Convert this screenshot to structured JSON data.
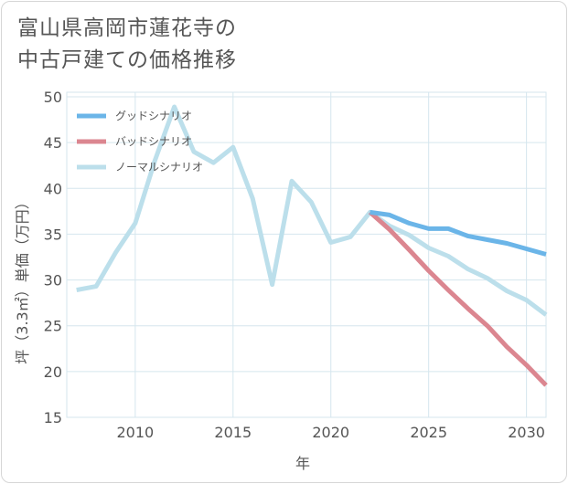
{
  "title": {
    "line1": "富山県高岡市蓮花寺の",
    "line2": "中古戸建ての価格推移"
  },
  "colors": {
    "good": "#6bb5e8",
    "bad": "#db8690",
    "normal": "#bcdfeb",
    "grid": "#d5e6ee",
    "axis": "#555555"
  },
  "chart_data": {
    "type": "line",
    "xlabel": "年",
    "ylabel": "坪（3.3㎡）単価（万円）",
    "xlim": [
      2006.5,
      2031
    ],
    "ylim": [
      15,
      50.5
    ],
    "xticks": [
      2010,
      2015,
      2020,
      2025,
      2030
    ],
    "yticks": [
      15,
      20,
      25,
      30,
      35,
      40,
      45,
      50
    ],
    "legend_position": "top-left",
    "series": [
      {
        "key": "good",
        "name": "グッドシナリオ",
        "x": [
          2022,
          2023,
          2024,
          2025,
          2026,
          2027,
          2028,
          2029,
          2030,
          2031
        ],
        "y": [
          37.4,
          37.1,
          36.2,
          35.6,
          35.6,
          34.8,
          34.4,
          34.0,
          33.4,
          32.8
        ]
      },
      {
        "key": "bad",
        "name": "バッドシナリオ",
        "x": [
          2022,
          2023,
          2024,
          2025,
          2026,
          2027,
          2028,
          2029,
          2030,
          2031
        ],
        "y": [
          37.4,
          35.5,
          33.3,
          31.0,
          28.9,
          26.9,
          25.0,
          22.7,
          20.7,
          18.5
        ]
      },
      {
        "key": "normal",
        "name": "ノーマルシナリオ",
        "x": [
          2007,
          2008,
          2009,
          2010,
          2011,
          2012,
          2013,
          2014,
          2015,
          2016,
          2017,
          2018,
          2019,
          2020,
          2021,
          2022,
          2023,
          2024,
          2025,
          2026,
          2027,
          2028,
          2029,
          2030,
          2031
        ],
        "y": [
          28.9,
          29.3,
          33.0,
          36.2,
          43.0,
          48.9,
          44.0,
          42.8,
          44.5,
          38.9,
          29.5,
          40.8,
          38.5,
          34.1,
          34.7,
          37.4,
          35.9,
          34.9,
          33.5,
          32.6,
          31.2,
          30.2,
          28.8,
          27.8,
          26.2
        ]
      }
    ]
  }
}
